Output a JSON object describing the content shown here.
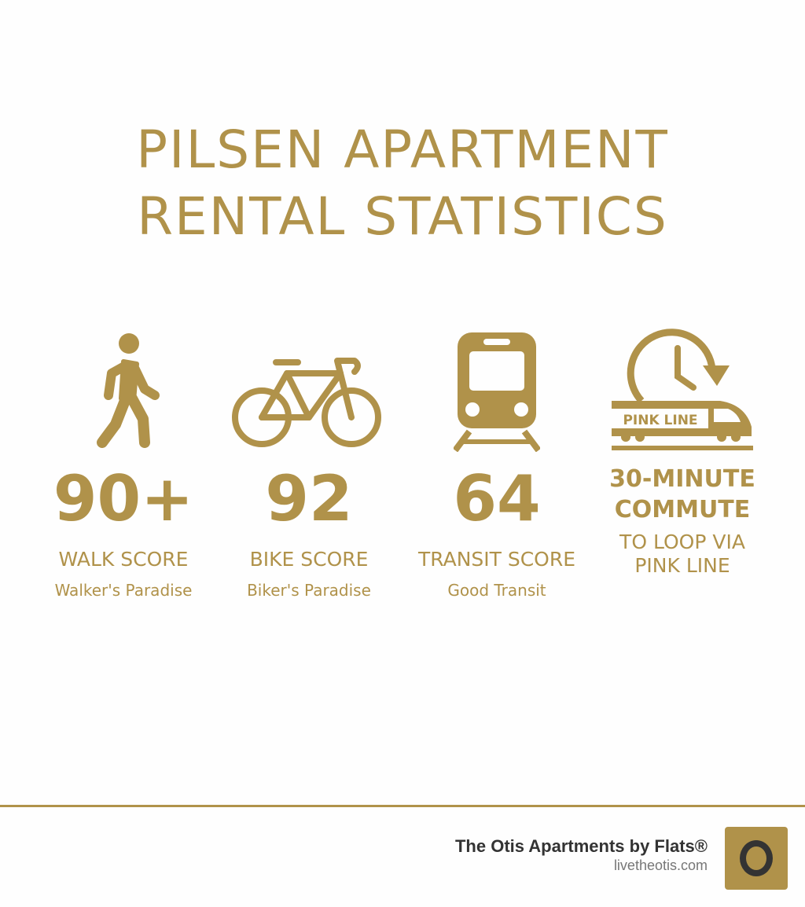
{
  "title": {
    "line1": "PILSEN APARTMENT",
    "line2": "RENTAL STATISTICS"
  },
  "accent_color": "#b0924a",
  "stats": [
    {
      "icon": "walking-person-icon",
      "value": "90+",
      "label": "WALK SCORE",
      "sub": "Walker's Paradise"
    },
    {
      "icon": "bicycle-icon",
      "value": "92",
      "label": "BIKE SCORE",
      "sub": "Biker's Paradise"
    },
    {
      "icon": "train-icon",
      "value": "64",
      "label": "TRANSIT SCORE",
      "sub": "Good Transit"
    },
    {
      "icon": "clock-train-icon",
      "icon_text": "PINK LINE",
      "value_line1": "30-MINUTE",
      "value_line2": "COMMUTE",
      "label_line1": "TO LOOP VIA",
      "label_line2": "PINK LINE"
    }
  ],
  "footer": {
    "brand": "The Otis Apartments by Flats®",
    "url": "livetheotis.com",
    "logo_icon": "otis-o-logo"
  }
}
